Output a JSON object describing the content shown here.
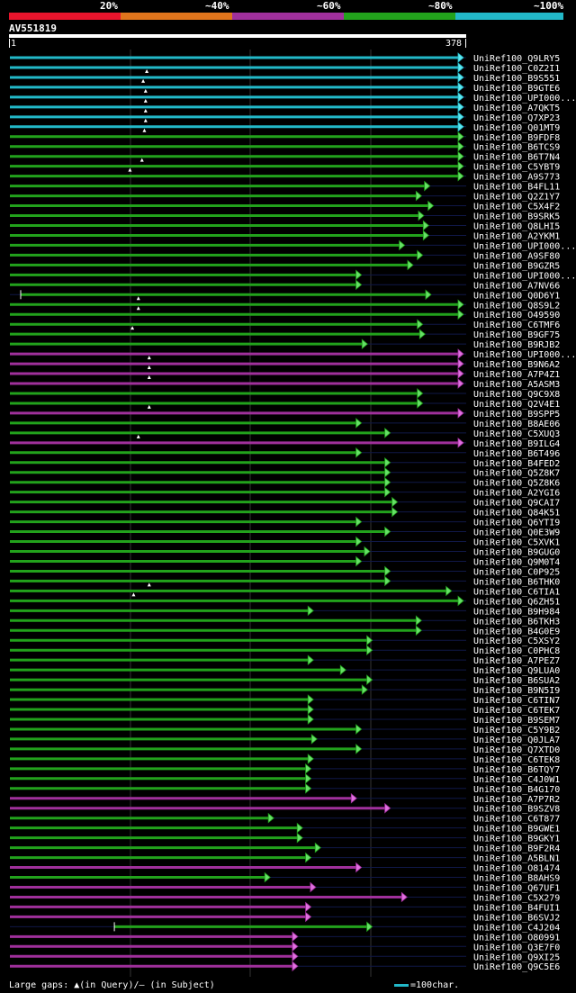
{
  "legend": {
    "items": [
      {
        "label": "20%",
        "color": "#e8142c"
      },
      {
        "label": "~40%",
        "color": "#e0751c"
      },
      {
        "label": "~60%",
        "color": "#a0309c"
      },
      {
        "label": "~80%",
        "color": "#22a21c"
      },
      {
        "label": "~100%",
        "color": "#22b8c8"
      }
    ]
  },
  "query": {
    "name": "AV551819",
    "start_label": "1",
    "end_label": "378",
    "length": 378
  },
  "footer": {
    "gaps_text": "Large gaps: ▲(in Query)/— (in Subject)",
    "scale_text": "=100char."
  },
  "chart_data": {
    "type": "table",
    "hits": [
      {
        "label": "UniRef100_Q9LRY5",
        "start": 1,
        "end": 378,
        "color": "cyan"
      },
      {
        "label": "UniRef100_C0Z2I1",
        "start": 1,
        "end": 378,
        "color": "cyan"
      },
      {
        "label": "UniRef100_B9S551",
        "start": 1,
        "end": 378,
        "color": "cyan",
        "mark": 115
      },
      {
        "label": "UniRef100_B9GTE6",
        "start": 1,
        "end": 378,
        "color": "cyan",
        "mark": 112
      },
      {
        "label": "UniRef100_UPI000...",
        "start": 1,
        "end": 378,
        "color": "cyan",
        "mark": 114
      },
      {
        "label": "UniRef100_A7QKT5",
        "start": 1,
        "end": 378,
        "color": "cyan",
        "mark": 114
      },
      {
        "label": "UniRef100_Q7XP23",
        "start": 1,
        "end": 378,
        "color": "cyan",
        "mark": 114
      },
      {
        "label": "UniRef100_Q01MT9",
        "start": 1,
        "end": 378,
        "color": "cyan",
        "mark": 114
      },
      {
        "label": "UniRef100_B9FDF8",
        "start": 1,
        "end": 378,
        "color": "green",
        "mark": 113
      },
      {
        "label": "UniRef100_B6TCS9",
        "start": 1,
        "end": 378,
        "color": "green"
      },
      {
        "label": "UniRef100_B6T7N4",
        "start": 1,
        "end": 378,
        "color": "green"
      },
      {
        "label": "UniRef100_C5YBT9",
        "start": 1,
        "end": 378,
        "color": "green",
        "mark": 111
      },
      {
        "label": "UniRef100_A9S773",
        "start": 1,
        "end": 378,
        "color": "green",
        "mark": 101
      },
      {
        "label": "UniRef100_B4FL11",
        "start": 1,
        "end": 350,
        "color": "green"
      },
      {
        "label": "UniRef100_Q2Z1Y7",
        "start": 1,
        "end": 343,
        "color": "green"
      },
      {
        "label": "UniRef100_C5X4F2",
        "start": 1,
        "end": 353,
        "color": "green"
      },
      {
        "label": "UniRef100_B9SRK5",
        "start": 1,
        "end": 345,
        "color": "green"
      },
      {
        "label": "UniRef100_Q8LHI5",
        "start": 1,
        "end": 349,
        "color": "green"
      },
      {
        "label": "UniRef100_A2YKM1",
        "start": 1,
        "end": 349,
        "color": "green"
      },
      {
        "label": "UniRef100_UPI000...",
        "start": 1,
        "end": 329,
        "color": "green"
      },
      {
        "label": "UniRef100_A9SF80",
        "start": 1,
        "end": 344,
        "color": "green"
      },
      {
        "label": "UniRef100_B9GZR5",
        "start": 1,
        "end": 336,
        "color": "green"
      },
      {
        "label": "UniRef100_UPI000...",
        "start": 1,
        "end": 293,
        "color": "green"
      },
      {
        "label": "UniRef100_A7NV66",
        "start": 1,
        "end": 293,
        "color": "green"
      },
      {
        "label": "UniRef100_Q0D6Y1",
        "start": 10,
        "end": 351,
        "color": "green"
      },
      {
        "label": "UniRef100_Q8S9L2",
        "start": 1,
        "end": 378,
        "color": "green",
        "mark": 108
      },
      {
        "label": "UniRef100_O49590",
        "start": 1,
        "end": 378,
        "color": "green",
        "mark": 108
      },
      {
        "label": "UniRef100_C6TMF6",
        "start": 1,
        "end": 344,
        "color": "green"
      },
      {
        "label": "UniRef100_B9GF75",
        "start": 1,
        "end": 346,
        "color": "green",
        "mark": 103
      },
      {
        "label": "UniRef100_B9RJB2",
        "start": 1,
        "end": 298,
        "color": "green"
      },
      {
        "label": "UniRef100_UPI000...",
        "start": 1,
        "end": 378,
        "color": "magenta"
      },
      {
        "label": "UniRef100_B9N6A2",
        "start": 1,
        "end": 378,
        "color": "magenta",
        "mark": 117
      },
      {
        "label": "UniRef100_A7P4Z1",
        "start": 1,
        "end": 378,
        "color": "magenta",
        "mark": 117
      },
      {
        "label": "UniRef100_A5ASM3",
        "start": 1,
        "end": 378,
        "color": "magenta",
        "mark": 117
      },
      {
        "label": "UniRef100_Q9C9X8",
        "start": 1,
        "end": 344,
        "color": "green"
      },
      {
        "label": "UniRef100_Q2V4E1",
        "start": 1,
        "end": 344,
        "color": "green"
      },
      {
        "label": "UniRef100_B9SPP5",
        "start": 1,
        "end": 378,
        "color": "magenta",
        "mark": 117
      },
      {
        "label": "UniRef100_B8AE06",
        "start": 1,
        "end": 293,
        "color": "green"
      },
      {
        "label": "UniRef100_C5XUQ3",
        "start": 1,
        "end": 317,
        "color": "green"
      },
      {
        "label": "UniRef100_B9ILG4",
        "start": 1,
        "end": 378,
        "color": "magenta",
        "mark": 108
      },
      {
        "label": "UniRef100_B6T496",
        "start": 1,
        "end": 293,
        "color": "green"
      },
      {
        "label": "UniRef100_B4FED2",
        "start": 1,
        "end": 317,
        "color": "green"
      },
      {
        "label": "UniRef100_Q5Z8K7",
        "start": 1,
        "end": 317,
        "color": "green"
      },
      {
        "label": "UniRef100_Q5Z8K6",
        "start": 1,
        "end": 317,
        "color": "green"
      },
      {
        "label": "UniRef100_A2YGI6",
        "start": 1,
        "end": 317,
        "color": "green"
      },
      {
        "label": "UniRef100_Q9CAI7",
        "start": 1,
        "end": 323,
        "color": "green"
      },
      {
        "label": "UniRef100_Q84K51",
        "start": 1,
        "end": 323,
        "color": "green"
      },
      {
        "label": "UniRef100_Q6YTI9",
        "start": 1,
        "end": 293,
        "color": "green"
      },
      {
        "label": "UniRef100_Q0E3W9",
        "start": 1,
        "end": 317,
        "color": "green"
      },
      {
        "label": "UniRef100_C5XVK1",
        "start": 1,
        "end": 293,
        "color": "green"
      },
      {
        "label": "UniRef100_B9GUG0",
        "start": 1,
        "end": 300,
        "color": "green"
      },
      {
        "label": "UniRef100_Q9M0T4",
        "start": 1,
        "end": 293,
        "color": "green"
      },
      {
        "label": "UniRef100_C0P925",
        "start": 1,
        "end": 317,
        "color": "green"
      },
      {
        "label": "UniRef100_B6THK0",
        "start": 1,
        "end": 317,
        "color": "green"
      },
      {
        "label": "UniRef100_C6TIA1",
        "start": 1,
        "end": 368,
        "color": "green",
        "mark": 117
      },
      {
        "label": "UniRef100_Q6ZH51",
        "start": 1,
        "end": 378,
        "color": "green",
        "mark": 104
      },
      {
        "label": "UniRef100_B9H984",
        "start": 1,
        "end": 253,
        "color": "green"
      },
      {
        "label": "UniRef100_B6TKH3",
        "start": 1,
        "end": 343,
        "color": "green"
      },
      {
        "label": "UniRef100_B4G0E9",
        "start": 1,
        "end": 343,
        "color": "green"
      },
      {
        "label": "UniRef100_C5XSY2",
        "start": 1,
        "end": 302,
        "color": "green"
      },
      {
        "label": "UniRef100_C0PHC8",
        "start": 1,
        "end": 302,
        "color": "green"
      },
      {
        "label": "UniRef100_A7PEZ7",
        "start": 1,
        "end": 253,
        "color": "green"
      },
      {
        "label": "UniRef100_Q9LUA0",
        "start": 1,
        "end": 280,
        "color": "green"
      },
      {
        "label": "UniRef100_B6SUA2",
        "start": 1,
        "end": 302,
        "color": "green"
      },
      {
        "label": "UniRef100_B9N5I9",
        "start": 1,
        "end": 298,
        "color": "green"
      },
      {
        "label": "UniRef100_C6TIN7",
        "start": 1,
        "end": 253,
        "color": "green"
      },
      {
        "label": "UniRef100_C6TEK7",
        "start": 1,
        "end": 253,
        "color": "green"
      },
      {
        "label": "UniRef100_B9SEM7",
        "start": 1,
        "end": 253,
        "color": "green"
      },
      {
        "label": "UniRef100_C5Y9B2",
        "start": 1,
        "end": 293,
        "color": "green"
      },
      {
        "label": "UniRef100_Q0JLA7",
        "start": 1,
        "end": 256,
        "color": "green"
      },
      {
        "label": "UniRef100_Q7XTD0",
        "start": 1,
        "end": 293,
        "color": "green"
      },
      {
        "label": "UniRef100_C6TEK8",
        "start": 1,
        "end": 253,
        "color": "green"
      },
      {
        "label": "UniRef100_B6TQY7",
        "start": 1,
        "end": 251,
        "color": "green"
      },
      {
        "label": "UniRef100_C4J0W1",
        "start": 1,
        "end": 251,
        "color": "green"
      },
      {
        "label": "UniRef100_B4G170",
        "start": 1,
        "end": 251,
        "color": "green"
      },
      {
        "label": "UniRef100_A7P7R2",
        "start": 1,
        "end": 289,
        "color": "magenta"
      },
      {
        "label": "UniRef100_B9SZV8",
        "start": 1,
        "end": 317,
        "color": "magenta"
      },
      {
        "label": "UniRef100_C6T877",
        "start": 1,
        "end": 220,
        "color": "green"
      },
      {
        "label": "UniRef100_B9GWE1",
        "start": 1,
        "end": 244,
        "color": "green"
      },
      {
        "label": "UniRef100_B9GKY1",
        "start": 1,
        "end": 244,
        "color": "green"
      },
      {
        "label": "UniRef100_B9F2R4",
        "start": 1,
        "end": 259,
        "color": "green"
      },
      {
        "label": "UniRef100_A5BLN1",
        "start": 1,
        "end": 251,
        "color": "green"
      },
      {
        "label": "UniRef100_O81474",
        "start": 1,
        "end": 293,
        "color": "magenta"
      },
      {
        "label": "UniRef100_B8AHS9",
        "start": 1,
        "end": 217,
        "color": "green"
      },
      {
        "label": "UniRef100_Q67UF1",
        "start": 1,
        "end": 255,
        "color": "magenta"
      },
      {
        "label": "UniRef100_C5X279",
        "start": 1,
        "end": 331,
        "color": "magenta"
      },
      {
        "label": "UniRef100_B4FUI1",
        "start": 1,
        "end": 251,
        "color": "magenta"
      },
      {
        "label": "UniRef100_B6SVJ2",
        "start": 1,
        "end": 251,
        "color": "magenta"
      },
      {
        "label": "UniRef100_C4J204",
        "start": 88,
        "end": 302,
        "color": "green"
      },
      {
        "label": "UniRef100_O80991",
        "start": 1,
        "end": 240,
        "color": "magenta"
      },
      {
        "label": "UniRef100_Q3E7F0",
        "start": 1,
        "end": 240,
        "color": "magenta"
      },
      {
        "label": "UniRef100_Q9XI25",
        "start": 1,
        "end": 240,
        "color": "magenta"
      },
      {
        "label": "UniRef100_Q9C5E6",
        "start": 1,
        "end": 240,
        "color": "magenta"
      }
    ]
  }
}
